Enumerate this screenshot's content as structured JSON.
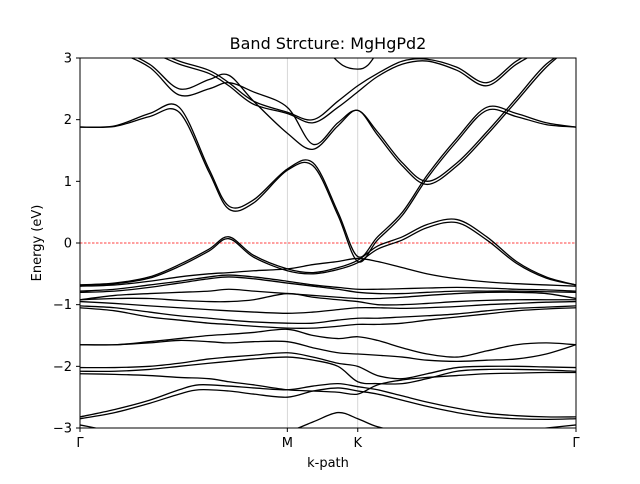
{
  "chart_data": {
    "type": "line",
    "title": "Band Strcture: MgHgPd2",
    "xlabel": "k-path",
    "ylabel": "Energy (eV)",
    "xlim": [
      0,
      1
    ],
    "ylim": [
      -3,
      3
    ],
    "y_ticks": [
      -3,
      -2,
      -1,
      0,
      1,
      2,
      3
    ],
    "y_tick_labels": [
      "−3",
      "−2",
      "−1",
      "0",
      "1",
      "2",
      "3"
    ],
    "k_points": [
      {
        "label": "Γ",
        "x": 0.0
      },
      {
        "label": "M",
        "x": 0.418
      },
      {
        "label": "K",
        "x": 0.56
      },
      {
        "label": "Γ",
        "x": 1.0
      }
    ],
    "vertical_gridlines_at_k_points": true,
    "fermi_level": {
      "energy": 0,
      "color": "#ff0000",
      "style": "dashed"
    },
    "band_color": "#000000",
    "bands": [
      {
        "x": [
          0,
          0.07,
          0.14,
          0.2,
          0.26,
          0.3,
          0.35,
          0.418,
          0.47,
          0.52,
          0.56,
          0.6,
          0.65,
          0.7,
          0.76,
          0.82,
          0.88,
          0.94,
          1.0
        ],
        "values": [
          -2.95,
          -3.05,
          -3.05,
          -3.05,
          -3.05,
          -3.05,
          -3.05,
          -3.05,
          -2.9,
          -2.75,
          -2.85,
          -2.98,
          -3.05,
          -3.05,
          -3.05,
          -3.05,
          -3.05,
          -3.0,
          -2.95
        ]
      },
      {
        "x": [
          0,
          0.07,
          0.14,
          0.2,
          0.24,
          0.3,
          0.35,
          0.418,
          0.47,
          0.52,
          0.56,
          0.6,
          0.65,
          0.7,
          0.76,
          0.82,
          0.88,
          0.94,
          1.0
        ],
        "values": [
          -2.85,
          -2.75,
          -2.6,
          -2.45,
          -2.38,
          -2.4,
          -2.45,
          -2.5,
          -2.4,
          -2.35,
          -2.4,
          -2.45,
          -2.55,
          -2.65,
          -2.75,
          -2.82,
          -2.85,
          -2.86,
          -2.85
        ]
      },
      {
        "x": [
          0,
          0.07,
          0.14,
          0.2,
          0.24,
          0.3,
          0.35,
          0.418,
          0.47,
          0.52,
          0.56,
          0.6,
          0.65,
          0.7,
          0.76,
          0.82,
          0.88,
          0.94,
          1.0
        ],
        "values": [
          -2.82,
          -2.7,
          -2.55,
          -2.38,
          -2.3,
          -2.32,
          -2.35,
          -2.38,
          -2.32,
          -2.28,
          -2.33,
          -2.38,
          -2.48,
          -2.58,
          -2.68,
          -2.76,
          -2.8,
          -2.82,
          -2.82
        ]
      },
      {
        "x": [
          0,
          0.07,
          0.14,
          0.2,
          0.26,
          0.3,
          0.35,
          0.418,
          0.47,
          0.52,
          0.56,
          0.6,
          0.65,
          0.7,
          0.76,
          0.82,
          0.88,
          0.94,
          1.0
        ],
        "values": [
          -2.12,
          -2.13,
          -2.15,
          -2.18,
          -2.2,
          -2.25,
          -2.3,
          -2.38,
          -2.4,
          -2.42,
          -2.45,
          -2.3,
          -2.22,
          -2.18,
          -2.15,
          -2.12,
          -2.11,
          -2.1,
          -2.1
        ]
      },
      {
        "x": [
          0,
          0.07,
          0.14,
          0.2,
          0.26,
          0.3,
          0.35,
          0.418,
          0.47,
          0.52,
          0.56,
          0.6,
          0.65,
          0.7,
          0.76,
          0.82,
          0.88,
          0.94,
          1.0
        ],
        "values": [
          -2.08,
          -2.08,
          -2.05,
          -2.0,
          -1.95,
          -1.92,
          -1.88,
          -1.85,
          -1.9,
          -2.0,
          -2.25,
          -2.28,
          -2.28,
          -2.2,
          -2.08,
          -2.05,
          -2.05,
          -2.06,
          -2.08
        ]
      },
      {
        "x": [
          0,
          0.07,
          0.14,
          0.2,
          0.26,
          0.3,
          0.35,
          0.418,
          0.47,
          0.52,
          0.56,
          0.6,
          0.65,
          0.7,
          0.76,
          0.82,
          0.88,
          0.94,
          1.0
        ],
        "values": [
          -2.02,
          -2.02,
          -2.0,
          -1.95,
          -1.88,
          -1.85,
          -1.82,
          -1.78,
          -1.85,
          -1.95,
          -2.0,
          -2.15,
          -2.2,
          -2.12,
          -2.02,
          -2.0,
          -2.0,
          -2.01,
          -2.02
        ]
      },
      {
        "x": [
          0,
          0.07,
          0.14,
          0.2,
          0.26,
          0.3,
          0.35,
          0.418,
          0.47,
          0.52,
          0.56,
          0.6,
          0.65,
          0.7,
          0.76,
          0.82,
          0.88,
          0.94,
          1.0
        ],
        "values": [
          -1.65,
          -1.65,
          -1.62,
          -1.58,
          -1.6,
          -1.62,
          -1.6,
          -1.6,
          -1.7,
          -1.78,
          -1.8,
          -1.82,
          -1.85,
          -1.9,
          -1.92,
          -1.9,
          -1.88,
          -1.8,
          -1.65
        ]
      },
      {
        "x": [
          0,
          0.07,
          0.14,
          0.2,
          0.26,
          0.3,
          0.35,
          0.418,
          0.47,
          0.52,
          0.56,
          0.6,
          0.65,
          0.7,
          0.76,
          0.82,
          0.88,
          0.94,
          1.0
        ],
        "values": [
          -1.65,
          -1.65,
          -1.6,
          -1.55,
          -1.5,
          -1.48,
          -1.45,
          -1.4,
          -1.5,
          -1.55,
          -1.52,
          -1.58,
          -1.7,
          -1.8,
          -1.85,
          -1.75,
          -1.65,
          -1.62,
          -1.65
        ]
      },
      {
        "x": [
          0,
          0.07,
          0.14,
          0.2,
          0.26,
          0.3,
          0.35,
          0.418,
          0.47,
          0.52,
          0.56,
          0.6,
          0.65,
          0.7,
          0.76,
          0.82,
          0.88,
          0.94,
          1.0
        ],
        "values": [
          -1.05,
          -1.1,
          -1.2,
          -1.25,
          -1.3,
          -1.32,
          -1.35,
          -1.38,
          -1.38,
          -1.35,
          -1.32,
          -1.32,
          -1.3,
          -1.25,
          -1.2,
          -1.15,
          -1.1,
          -1.07,
          -1.05
        ]
      },
      {
        "x": [
          0,
          0.07,
          0.14,
          0.2,
          0.26,
          0.3,
          0.35,
          0.418,
          0.47,
          0.52,
          0.56,
          0.6,
          0.65,
          0.7,
          0.76,
          0.82,
          0.88,
          0.94,
          1.0
        ],
        "values": [
          -1.02,
          -1.05,
          -1.12,
          -1.18,
          -1.22,
          -1.25,
          -1.28,
          -1.3,
          -1.3,
          -1.25,
          -1.22,
          -1.22,
          -1.2,
          -1.18,
          -1.15,
          -1.1,
          -1.06,
          -1.04,
          -1.02
        ]
      },
      {
        "x": [
          0,
          0.07,
          0.14,
          0.2,
          0.26,
          0.3,
          0.35,
          0.418,
          0.47,
          0.52,
          0.56,
          0.6,
          0.65,
          0.7,
          0.76,
          0.82,
          0.88,
          0.94,
          1.0
        ],
        "values": [
          -0.95,
          -0.98,
          -1.02,
          -1.05,
          -1.08,
          -1.1,
          -1.12,
          -1.14,
          -1.12,
          -1.08,
          -1.05,
          -1.05,
          -1.06,
          -1.05,
          -1.03,
          -1.0,
          -0.98,
          -0.96,
          -0.95
        ]
      },
      {
        "x": [
          0,
          0.07,
          0.14,
          0.2,
          0.26,
          0.3,
          0.35,
          0.418,
          0.47,
          0.52,
          0.56,
          0.6,
          0.65,
          0.7,
          0.76,
          0.82,
          0.88,
          0.94,
          1.0
        ],
        "values": [
          -0.92,
          -0.9,
          -0.9,
          -0.93,
          -0.95,
          -0.95,
          -0.92,
          -0.82,
          -0.88,
          -0.92,
          -0.95,
          -1.0,
          -1.0,
          -0.98,
          -0.95,
          -0.93,
          -0.92,
          -0.92,
          -0.92
        ]
      },
      {
        "x": [
          0,
          0.07,
          0.14,
          0.2,
          0.26,
          0.3,
          0.35,
          0.418,
          0.47,
          0.52,
          0.56,
          0.6,
          0.65,
          0.7,
          0.76,
          0.82,
          0.88,
          0.94,
          1.0
        ],
        "values": [
          -0.92,
          -0.85,
          -0.82,
          -0.8,
          -0.78,
          -0.75,
          -0.78,
          -0.82,
          -0.85,
          -0.88,
          -0.9,
          -0.9,
          -0.88,
          -0.85,
          -0.82,
          -0.8,
          -0.8,
          -0.82,
          -0.9
        ]
      },
      {
        "x": [
          0,
          0.07,
          0.14,
          0.2,
          0.26,
          0.3,
          0.35,
          0.418,
          0.47,
          0.52,
          0.56,
          0.6,
          0.65,
          0.7,
          0.76,
          0.82,
          0.88,
          0.94,
          1.0
        ],
        "values": [
          -0.8,
          -0.78,
          -0.72,
          -0.65,
          -0.58,
          -0.55,
          -0.58,
          -0.65,
          -0.7,
          -0.75,
          -0.8,
          -0.82,
          -0.82,
          -0.8,
          -0.78,
          -0.78,
          -0.78,
          -0.79,
          -0.8
        ]
      },
      {
        "x": [
          0,
          0.07,
          0.14,
          0.2,
          0.26,
          0.3,
          0.35,
          0.418,
          0.47,
          0.52,
          0.56,
          0.6,
          0.65,
          0.7,
          0.76,
          0.82,
          0.88,
          0.94,
          1.0
        ],
        "values": [
          -0.78,
          -0.75,
          -0.68,
          -0.62,
          -0.55,
          -0.52,
          -0.55,
          -0.62,
          -0.68,
          -0.72,
          -0.75,
          -0.75,
          -0.74,
          -0.73,
          -0.72,
          -0.73,
          -0.75,
          -0.76,
          -0.78
        ]
      },
      {
        "x": [
          0,
          0.07,
          0.14,
          0.2,
          0.26,
          0.3,
          0.35,
          0.418,
          0.47,
          0.52,
          0.56,
          0.6,
          0.65,
          0.7,
          0.76,
          0.82,
          0.88,
          0.94,
          1.0
        ],
        "values": [
          -0.68,
          -0.65,
          -0.55,
          -0.35,
          -0.1,
          0.1,
          -0.2,
          -0.42,
          -0.48,
          -0.4,
          -0.28,
          -0.05,
          0.1,
          0.3,
          0.38,
          0.1,
          -0.3,
          -0.55,
          -0.68
        ]
      },
      {
        "x": [
          0,
          0.07,
          0.14,
          0.2,
          0.26,
          0.3,
          0.35,
          0.418,
          0.47,
          0.52,
          0.56,
          0.6,
          0.65,
          0.7,
          0.76,
          0.82,
          0.88,
          0.94,
          1.0
        ],
        "values": [
          -0.68,
          -0.66,
          -0.57,
          -0.38,
          -0.13,
          0.07,
          -0.23,
          -0.45,
          -0.5,
          -0.43,
          -0.32,
          -0.1,
          0.05,
          0.25,
          0.33,
          0.05,
          -0.33,
          -0.57,
          -0.68
        ]
      },
      {
        "x": [
          0,
          0.07,
          0.14,
          0.2,
          0.26,
          0.3,
          0.35,
          0.418,
          0.47,
          0.52,
          0.56,
          0.6,
          0.65,
          0.7,
          0.76,
          0.82,
          0.88,
          0.94,
          1.0
        ],
        "values": [
          -0.7,
          -0.68,
          -0.62,
          -0.55,
          -0.5,
          -0.48,
          -0.45,
          -0.42,
          -0.35,
          -0.3,
          -0.25,
          -0.3,
          -0.4,
          -0.5,
          -0.58,
          -0.63,
          -0.66,
          -0.68,
          -0.7
        ]
      },
      {
        "x": [
          0,
          0.07,
          0.14,
          0.2,
          0.26,
          0.3,
          0.35,
          0.418,
          0.47,
          0.52,
          0.56,
          0.6,
          0.65,
          0.7,
          0.76,
          0.82,
          0.88,
          0.94,
          1.0
        ],
        "values": [
          1.88,
          1.9,
          2.1,
          2.2,
          1.2,
          0.6,
          0.7,
          1.2,
          1.3,
          0.5,
          -0.22,
          0.1,
          0.5,
          1.1,
          1.7,
          2.2,
          2.1,
          1.95,
          1.88
        ]
      },
      {
        "x": [
          0,
          0.07,
          0.14,
          0.2,
          0.26,
          0.3,
          0.35,
          0.418,
          0.47,
          0.52,
          0.56,
          0.6,
          0.65,
          0.7,
          0.76,
          0.82,
          0.88,
          0.94,
          1.0
        ],
        "values": [
          1.88,
          1.89,
          2.05,
          2.12,
          1.15,
          0.55,
          0.65,
          1.18,
          1.25,
          0.45,
          -0.3,
          0.05,
          0.45,
          1.05,
          1.65,
          2.15,
          2.05,
          1.92,
          1.88
        ]
      },
      {
        "x": [
          0,
          0.07,
          0.14,
          0.2,
          0.26,
          0.3,
          0.35,
          0.418,
          0.47,
          0.52,
          0.56,
          0.6,
          0.65,
          0.7,
          0.76,
          0.82,
          0.88,
          0.94,
          1.0
        ],
        "values": [
          3.2,
          3.1,
          2.85,
          2.4,
          2.5,
          2.6,
          2.45,
          2.2,
          1.6,
          1.95,
          2.15,
          1.8,
          1.3,
          1.0,
          1.3,
          1.8,
          2.35,
          2.9,
          3.2
        ]
      },
      {
        "x": [
          0,
          0.07,
          0.14,
          0.2,
          0.26,
          0.3,
          0.35,
          0.418,
          0.47,
          0.52,
          0.56,
          0.6,
          0.65,
          0.7,
          0.76,
          0.82,
          0.88,
          0.94,
          1.0
        ],
        "values": [
          3.25,
          3.15,
          2.9,
          2.5,
          2.65,
          2.72,
          2.3,
          1.78,
          1.52,
          1.9,
          2.15,
          1.75,
          1.25,
          0.95,
          1.25,
          1.75,
          2.3,
          2.85,
          3.25
        ]
      },
      {
        "x": [
          0,
          0.07,
          0.14,
          0.2,
          0.26,
          0.3,
          0.35,
          0.418,
          0.47,
          0.52,
          0.56,
          0.6,
          0.65,
          0.7,
          0.76,
          0.82,
          0.88,
          0.94,
          1.0
        ],
        "values": [
          3.3,
          3.25,
          3.1,
          2.9,
          2.75,
          2.55,
          2.25,
          2.1,
          1.95,
          2.2,
          2.45,
          2.7,
          2.9,
          2.95,
          2.8,
          2.55,
          2.9,
          3.15,
          3.3
        ]
      },
      {
        "x": [
          0,
          0.07,
          0.14,
          0.2,
          0.26,
          0.3,
          0.35,
          0.418,
          0.47,
          0.52,
          0.56,
          0.6,
          0.65,
          0.7,
          0.76,
          0.82,
          0.88,
          0.94,
          1.0
        ],
        "values": [
          3.35,
          3.3,
          3.15,
          2.95,
          2.8,
          2.6,
          2.3,
          2.12,
          2.0,
          2.3,
          2.55,
          2.75,
          2.95,
          2.98,
          2.85,
          2.6,
          2.95,
          3.2,
          3.35
        ]
      },
      {
        "x": [
          0.5,
          0.53,
          0.56,
          0.58,
          0.6
        ],
        "values": [
          3.1,
          2.88,
          2.82,
          2.88,
          3.1
        ]
      }
    ]
  }
}
